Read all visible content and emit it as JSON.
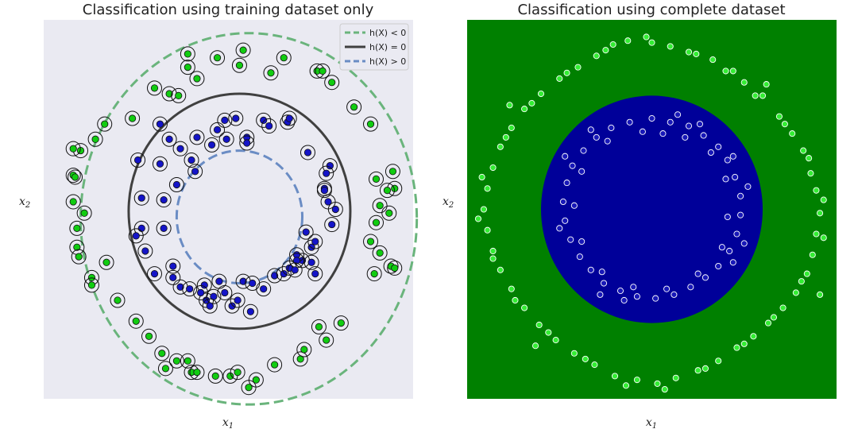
{
  "chart_data": [
    {
      "type": "scatter",
      "title": "Classification using training dataset only",
      "xlabel": "x1",
      "ylabel": "x2",
      "xlim": [
        -1.0,
        1.0
      ],
      "ylim": [
        -1.0,
        1.0
      ],
      "grid": false,
      "legend": {
        "placement": "top-right",
        "entries": [
          {
            "label": "h(X) < 0",
            "color": "#6ab47c",
            "style": "dashed"
          },
          {
            "label": "h(X) = 0",
            "color": "#404040",
            "style": "solid"
          },
          {
            "label": "h(X) > 0",
            "color": "#6a8cc4",
            "style": "dashed"
          }
        ]
      },
      "contours": [
        {
          "label": "h(X) < 0",
          "cx": 0.11,
          "cy": -0.05,
          "rx": 0.91,
          "ry": 0.98
        },
        {
          "label": "h(X) = 0",
          "cx": 0.06,
          "cy": -0.01,
          "rx": 0.6,
          "ry": 0.62
        },
        {
          "label": "h(X) > 0",
          "cx": 0.06,
          "cy": -0.04,
          "rx": 0.34,
          "ry": 0.35
        }
      ],
      "series": [
        {
          "color": "#11cc11",
          "points": [
            [
              0.08,
              0.84
            ],
            [
              -0.06,
              0.8
            ],
            [
              0.3,
              0.8
            ],
            [
              -0.22,
              0.82
            ],
            [
              0.48,
              0.73
            ],
            [
              0.06,
              0.76
            ],
            [
              -0.17,
              0.69
            ],
            [
              0.23,
              0.72
            ],
            [
              -0.22,
              0.75
            ],
            [
              0.56,
              0.67
            ],
            [
              0.51,
              0.73
            ],
            [
              0.68,
              0.54
            ],
            [
              0.77,
              0.45
            ],
            [
              -0.4,
              0.64
            ],
            [
              -0.32,
              0.61
            ],
            [
              -0.27,
              0.6
            ],
            [
              -0.52,
              0.48
            ],
            [
              -0.67,
              0.45
            ],
            [
              -0.72,
              0.37
            ],
            [
              -0.8,
              0.31
            ],
            [
              -0.84,
              0.18
            ],
            [
              -0.84,
              0.32
            ],
            [
              -0.83,
              0.17
            ],
            [
              -0.84,
              0.04
            ],
            [
              -0.82,
              -0.1
            ],
            [
              -0.78,
              -0.02
            ],
            [
              -0.82,
              -0.2
            ],
            [
              -0.81,
              -0.25
            ],
            [
              -0.66,
              -0.28
            ],
            [
              -0.74,
              -0.36
            ],
            [
              -0.74,
              -0.4
            ],
            [
              -0.6,
              -0.48
            ],
            [
              -0.5,
              -0.59
            ],
            [
              -0.43,
              -0.67
            ],
            [
              -0.36,
              -0.76
            ],
            [
              -0.28,
              -0.8
            ],
            [
              -0.34,
              -0.84
            ],
            [
              -0.22,
              -0.8
            ],
            [
              -0.2,
              -0.86
            ],
            [
              -0.17,
              -0.86
            ],
            [
              -0.07,
              -0.88
            ],
            [
              0.01,
              -0.88
            ],
            [
              0.05,
              -0.86
            ],
            [
              0.11,
              -0.94
            ],
            [
              0.15,
              -0.9
            ],
            [
              0.25,
              -0.82
            ],
            [
              0.39,
              -0.79
            ],
            [
              0.41,
              -0.74
            ],
            [
              0.53,
              -0.69
            ],
            [
              0.49,
              -0.62
            ],
            [
              0.61,
              -0.6
            ],
            [
              0.79,
              -0.34
            ],
            [
              0.88,
              -0.3
            ],
            [
              0.82,
              -0.23
            ],
            [
              0.77,
              -0.17
            ],
            [
              0.8,
              -0.07
            ],
            [
              0.87,
              -0.02
            ],
            [
              0.9,
              0.11
            ],
            [
              0.8,
              0.16
            ],
            [
              0.89,
              0.2
            ],
            [
              0.82,
              0.02
            ],
            [
              0.86,
              0.1
            ],
            [
              0.9,
              -0.31
            ]
          ]
        },
        {
          "color": "#1414c8",
          "points": [
            [
              -0.02,
              0.47
            ],
            [
              0.04,
              0.48
            ],
            [
              0.19,
              0.47
            ],
            [
              0.32,
              0.46
            ],
            [
              -0.17,
              0.38
            ],
            [
              -0.01,
              0.37
            ],
            [
              -0.2,
              0.26
            ],
            [
              -0.26,
              0.32
            ],
            [
              -0.28,
              0.13
            ],
            [
              -0.18,
              0.2
            ],
            [
              -0.37,
              0.24
            ],
            [
              -0.32,
              0.37
            ],
            [
              -0.37,
              0.45
            ],
            [
              -0.49,
              0.26
            ],
            [
              -0.35,
              0.05
            ],
            [
              -0.47,
              0.06
            ],
            [
              -0.35,
              -0.1
            ],
            [
              -0.47,
              -0.1
            ],
            [
              -0.45,
              -0.22
            ],
            [
              -0.5,
              -0.14
            ],
            [
              -0.4,
              -0.34
            ],
            [
              -0.3,
              -0.3
            ],
            [
              -0.26,
              -0.41
            ],
            [
              -0.21,
              -0.42
            ],
            [
              -0.13,
              -0.4
            ],
            [
              -0.05,
              -0.38
            ],
            [
              0.08,
              -0.38
            ],
            [
              0.13,
              -0.39
            ],
            [
              0.19,
              -0.42
            ],
            [
              0.25,
              -0.35
            ],
            [
              0.3,
              -0.34
            ],
            [
              0.33,
              -0.31
            ],
            [
              0.4,
              -0.27
            ],
            [
              0.37,
              -0.24
            ],
            [
              0.45,
              -0.2
            ],
            [
              0.47,
              -0.17
            ],
            [
              0.42,
              -0.12
            ],
            [
              0.56,
              -0.08
            ],
            [
              0.58,
              0.0
            ],
            [
              0.52,
              0.11
            ],
            [
              0.55,
              0.23
            ],
            [
              0.53,
              0.19
            ],
            [
              0.43,
              0.3
            ],
            [
              0.33,
              0.48
            ],
            [
              0.22,
              0.44
            ],
            [
              -0.09,
              0.34
            ],
            [
              0.47,
              -0.34
            ],
            [
              0.45,
              -0.28
            ],
            [
              0.37,
              -0.27
            ],
            [
              0.54,
              0.04
            ],
            [
              0.52,
              0.1
            ],
            [
              0.1,
              0.38
            ],
            [
              -0.06,
              0.42
            ],
            [
              0.1,
              0.35
            ],
            [
              -0.02,
              -0.44
            ],
            [
              -0.12,
              -0.48
            ],
            [
              -0.08,
              -0.46
            ],
            [
              0.02,
              -0.51
            ],
            [
              0.05,
              -0.48
            ],
            [
              -0.1,
              -0.51
            ],
            [
              0.12,
              -0.54
            ],
            [
              0.36,
              -0.32
            ],
            [
              -0.3,
              -0.36
            ],
            [
              -0.15,
              -0.44
            ]
          ]
        }
      ]
    },
    {
      "type": "scatter",
      "title": "Classification using complete dataset",
      "xlabel": "x1",
      "ylabel": "x2",
      "xlim": [
        -1.0,
        1.0
      ],
      "ylim": [
        -1.0,
        1.0
      ],
      "grid": false,
      "background": "#008000",
      "region": {
        "color": "#000099",
        "cx": 0.0,
        "cy": 0.0,
        "r": 0.6
      },
      "series": [
        {
          "color": "#33ee33",
          "points": [
            [
              -0.21,
              0.87
            ],
            [
              -0.13,
              0.89
            ],
            [
              -0.03,
              0.91
            ],
            [
              0.0,
              0.88
            ],
            [
              0.1,
              0.86
            ],
            [
              0.24,
              0.82
            ],
            [
              0.33,
              0.79
            ],
            [
              0.44,
              0.73
            ],
            [
              0.5,
              0.67
            ],
            [
              0.6,
              0.6
            ],
            [
              0.69,
              0.49
            ],
            [
              0.76,
              0.4
            ],
            [
              0.82,
              0.31
            ],
            [
              0.86,
              0.19
            ],
            [
              0.89,
              0.1
            ],
            [
              0.91,
              -0.02
            ],
            [
              0.89,
              -0.13
            ],
            [
              0.87,
              -0.24
            ],
            [
              0.84,
              -0.34
            ],
            [
              0.78,
              -0.44
            ],
            [
              0.71,
              -0.52
            ],
            [
              0.63,
              -0.6
            ],
            [
              0.55,
              -0.67
            ],
            [
              0.46,
              -0.73
            ],
            [
              0.36,
              -0.8
            ],
            [
              0.25,
              -0.85
            ],
            [
              0.13,
              -0.89
            ],
            [
              0.03,
              -0.92
            ],
            [
              -0.08,
              -0.9
            ],
            [
              -0.2,
              -0.88
            ],
            [
              -0.31,
              -0.82
            ],
            [
              -0.42,
              -0.76
            ],
            [
              -0.52,
              -0.69
            ],
            [
              -0.61,
              -0.61
            ],
            [
              -0.69,
              -0.52
            ],
            [
              -0.76,
              -0.42
            ],
            [
              -0.82,
              -0.32
            ],
            [
              -0.86,
              -0.22
            ],
            [
              -0.89,
              -0.11
            ],
            [
              -0.91,
              0.0
            ],
            [
              -0.89,
              0.11
            ],
            [
              -0.86,
              0.22
            ],
            [
              -0.82,
              0.33
            ],
            [
              -0.76,
              0.43
            ],
            [
              -0.69,
              0.53
            ],
            [
              -0.6,
              0.61
            ],
            [
              -0.5,
              0.69
            ],
            [
              -0.4,
              0.75
            ],
            [
              -0.3,
              0.81
            ],
            [
              0.2,
              0.83
            ],
            [
              0.4,
              0.73
            ],
            [
              0.56,
              0.6
            ],
            [
              0.72,
              0.45
            ],
            [
              0.85,
              0.27
            ],
            [
              0.93,
              0.05
            ],
            [
              0.93,
              -0.15
            ],
            [
              0.81,
              -0.38
            ],
            [
              0.66,
              -0.57
            ],
            [
              0.5,
              -0.71
            ],
            [
              0.29,
              -0.84
            ],
            [
              0.07,
              -0.95
            ],
            [
              -0.14,
              -0.93
            ],
            [
              -0.36,
              -0.79
            ],
            [
              -0.56,
              -0.65
            ],
            [
              -0.74,
              -0.48
            ],
            [
              -0.86,
              -0.26
            ],
            [
              -0.94,
              -0.05
            ],
            [
              -0.92,
              0.17
            ],
            [
              -0.79,
              0.38
            ],
            [
              -0.65,
              0.56
            ],
            [
              -0.46,
              0.72
            ],
            [
              -0.25,
              0.84
            ],
            [
              0.62,
              0.66
            ],
            [
              0.91,
              -0.45
            ],
            [
              -0.63,
              -0.72
            ],
            [
              -0.77,
              0.55
            ]
          ]
        },
        {
          "color": "#1818b8",
          "points": [
            [
              0.0,
              0.48
            ],
            [
              0.1,
              0.46
            ],
            [
              0.2,
              0.44
            ],
            [
              0.28,
              0.39
            ],
            [
              0.36,
              0.33
            ],
            [
              0.41,
              0.26
            ],
            [
              0.45,
              0.17
            ],
            [
              0.48,
              0.07
            ],
            [
              0.48,
              -0.03
            ],
            [
              0.46,
              -0.13
            ],
            [
              0.42,
              -0.22
            ],
            [
              0.36,
              -0.3
            ],
            [
              0.29,
              -0.36
            ],
            [
              0.21,
              -0.41
            ],
            [
              0.12,
              -0.45
            ],
            [
              0.02,
              -0.47
            ],
            [
              -0.08,
              -0.46
            ],
            [
              -0.17,
              -0.43
            ],
            [
              -0.26,
              -0.39
            ],
            [
              -0.33,
              -0.32
            ],
            [
              -0.39,
              -0.25
            ],
            [
              -0.44,
              -0.16
            ],
            [
              -0.47,
              -0.06
            ],
            [
              -0.48,
              0.04
            ],
            [
              -0.46,
              0.14
            ],
            [
              -0.43,
              0.23
            ],
            [
              -0.37,
              0.31
            ],
            [
              -0.3,
              0.38
            ],
            [
              -0.22,
              0.43
            ],
            [
              -0.12,
              0.46
            ],
            [
              0.06,
              0.4
            ],
            [
              0.18,
              0.38
            ],
            [
              0.32,
              0.3
            ],
            [
              0.4,
              0.16
            ],
            [
              0.41,
              -0.04
            ],
            [
              0.38,
              -0.2
            ],
            [
              0.25,
              -0.34
            ],
            [
              0.08,
              -0.42
            ],
            [
              -0.1,
              -0.41
            ],
            [
              -0.27,
              -0.33
            ],
            [
              -0.38,
              -0.17
            ],
            [
              -0.42,
              0.02
            ],
            [
              -0.38,
              0.2
            ],
            [
              -0.24,
              0.36
            ],
            [
              -0.05,
              0.41
            ],
            [
              0.26,
              0.45
            ],
            [
              0.44,
              0.28
            ],
            [
              0.5,
              -0.18
            ],
            [
              -0.15,
              -0.48
            ],
            [
              -0.47,
              0.28
            ],
            [
              0.14,
              0.5
            ],
            [
              -0.33,
              0.42
            ],
            [
              0.44,
              -0.28
            ],
            [
              -0.28,
              -0.45
            ],
            [
              0.52,
              0.12
            ],
            [
              -0.5,
              -0.1
            ]
          ]
        }
      ]
    }
  ]
}
